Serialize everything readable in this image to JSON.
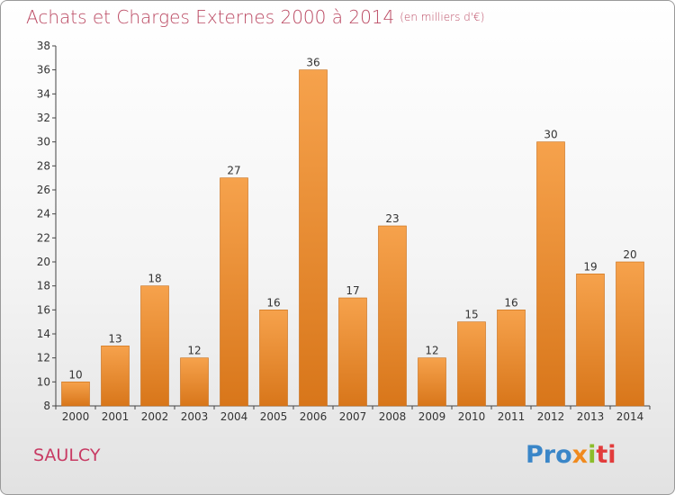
{
  "header": {
    "title": "Achats et Charges Externes 2000 à 2014",
    "subtitle": "(en milliers d'€)"
  },
  "footer": {
    "place": "SAULCY",
    "logo": [
      "Pro",
      "x",
      "i",
      "ti"
    ]
  },
  "colors": {
    "bar_top": "#f6a24c",
    "bar_bottom": "#d8761a",
    "title": "#bb4a63",
    "place": "#c83a63"
  },
  "chart_data": {
    "type": "bar",
    "title": "Achats et Charges Externes 2000 à 2014",
    "subtitle": "(en milliers d'€)",
    "categories": [
      "2000",
      "2001",
      "2002",
      "2003",
      "2004",
      "2005",
      "2006",
      "2007",
      "2008",
      "2009",
      "2010",
      "2011",
      "2012",
      "2013",
      "2014"
    ],
    "values": [
      10,
      13,
      18,
      12,
      27,
      16,
      36,
      17,
      23,
      12,
      15,
      16,
      30,
      19,
      20
    ],
    "ylim": [
      8,
      38
    ],
    "yticks": [
      8,
      10,
      12,
      14,
      16,
      18,
      20,
      22,
      24,
      26,
      28,
      30,
      32,
      34,
      36,
      38
    ],
    "grid": false,
    "data_labels": true
  }
}
